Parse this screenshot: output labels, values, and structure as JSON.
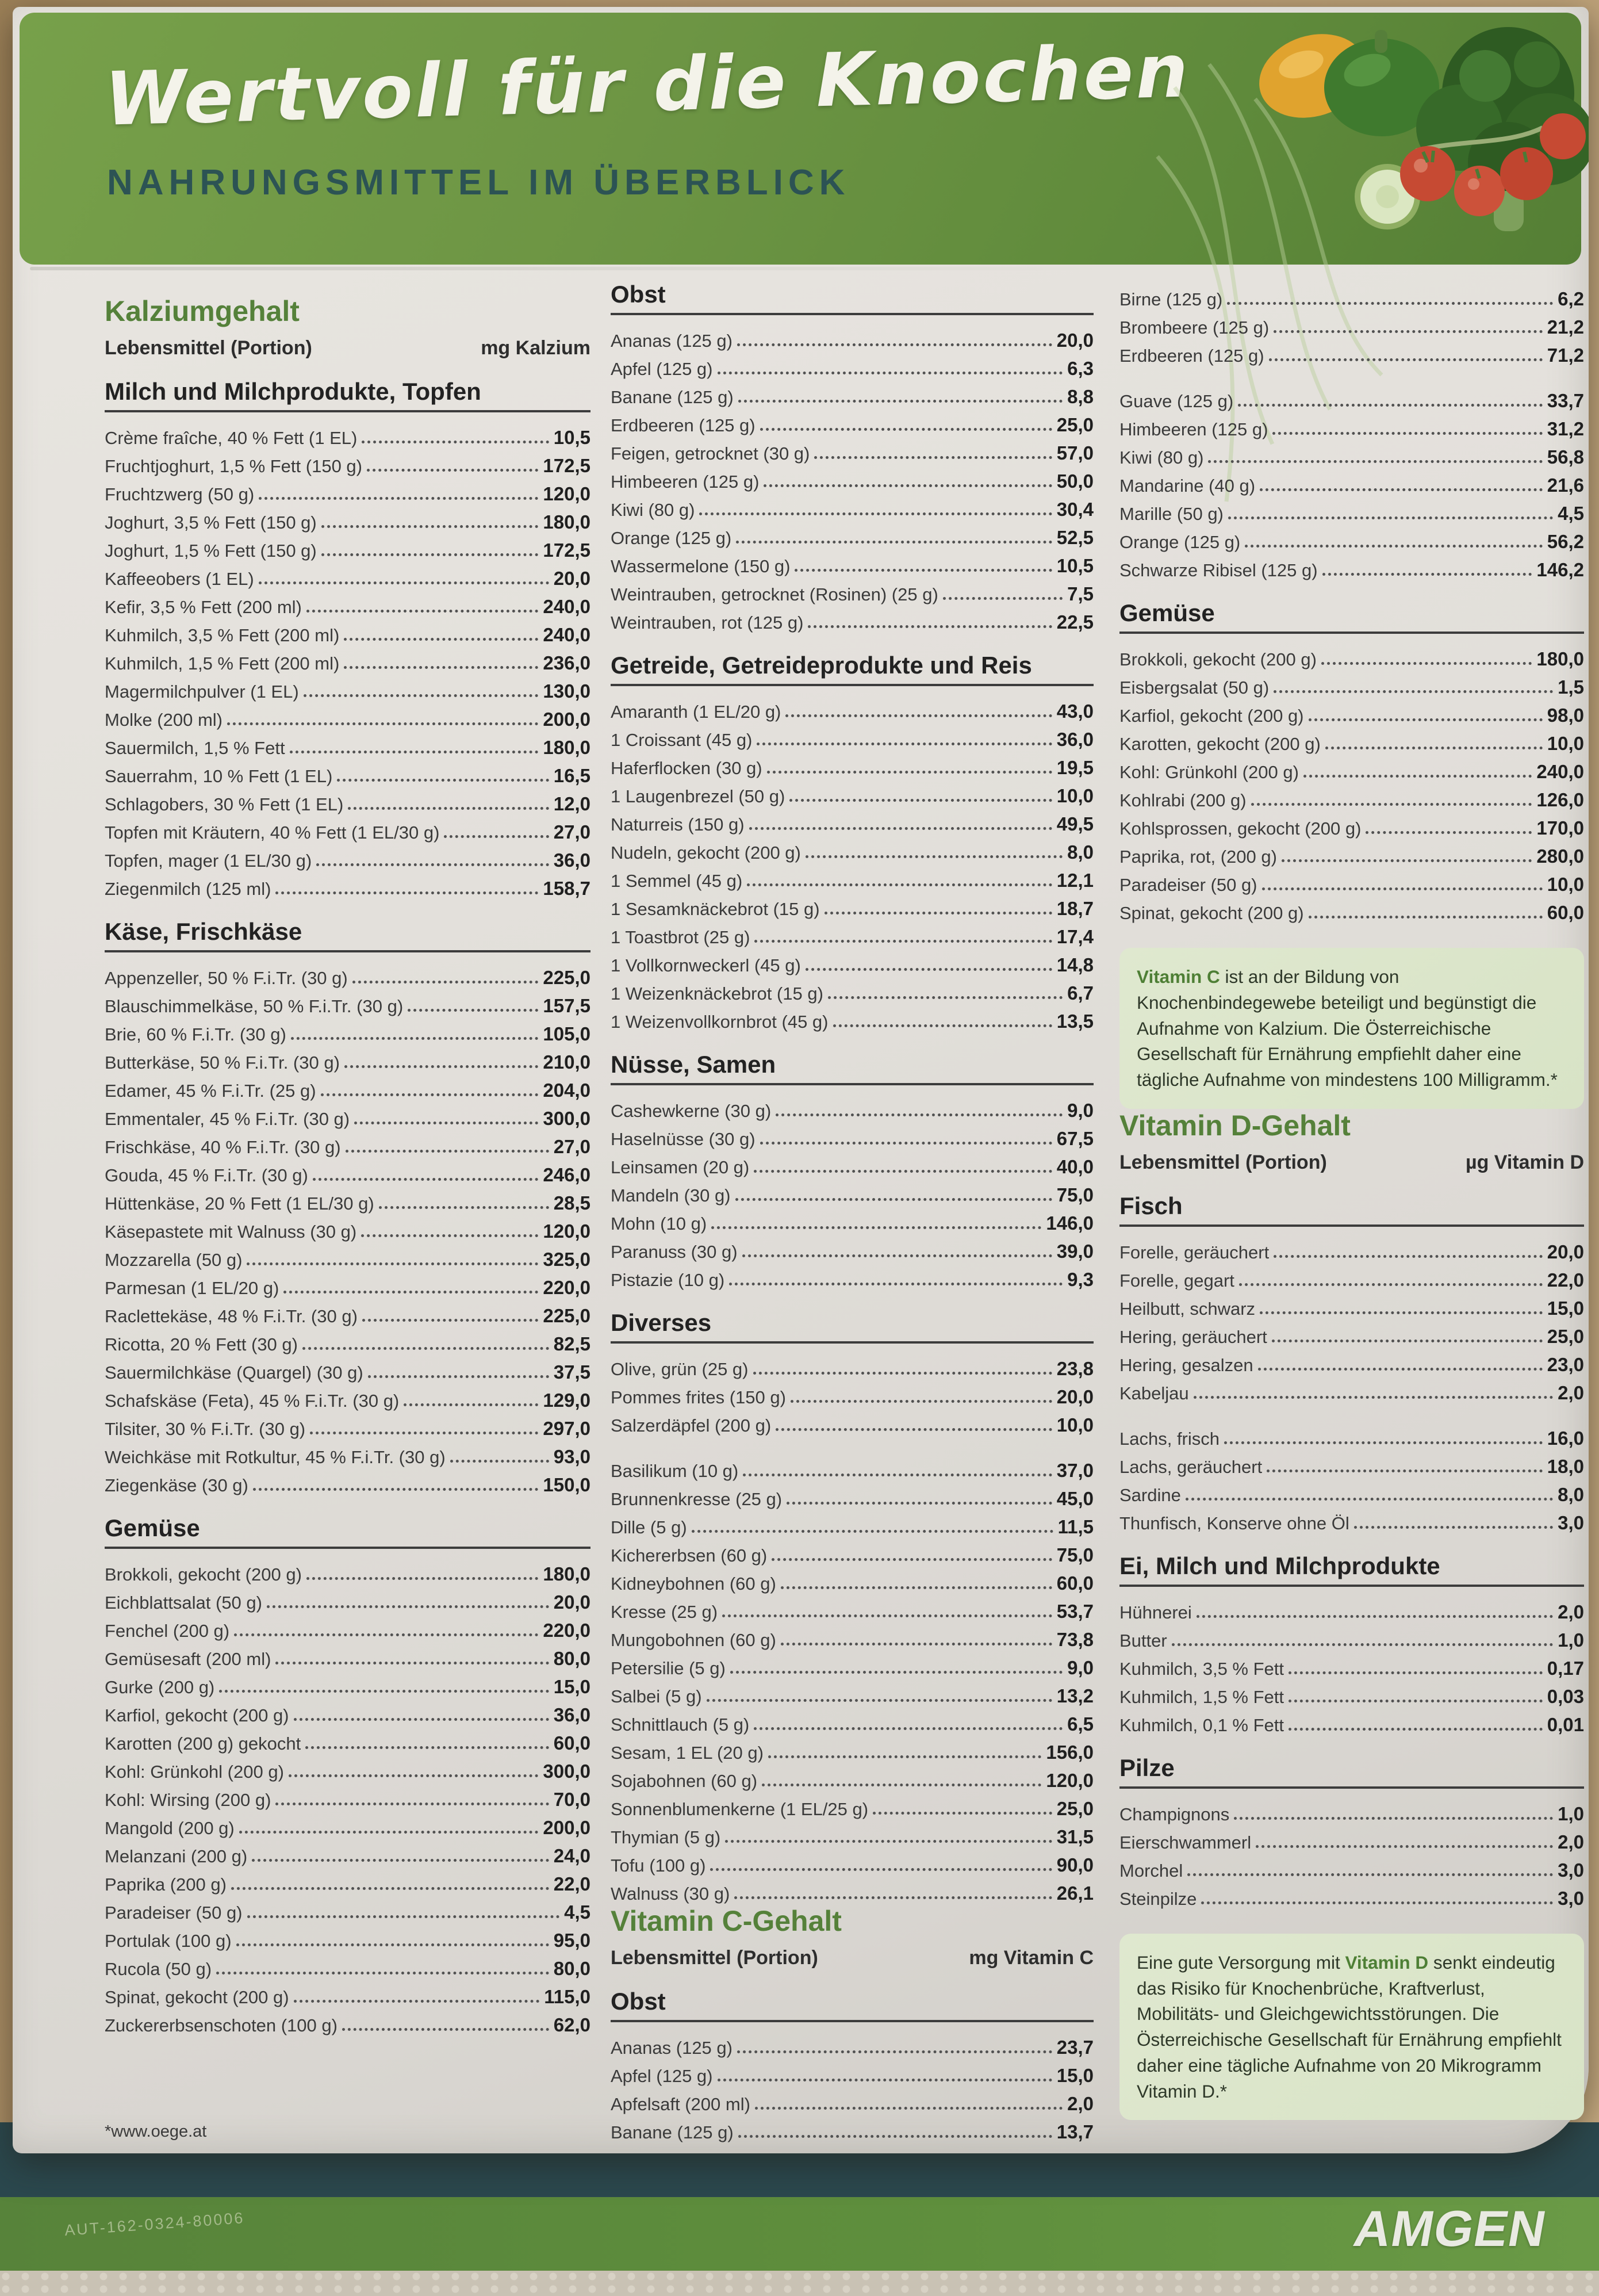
{
  "header": {
    "title": "Wertvoll für die Knochen",
    "subtitle": "NAHRUNGSMITTEL IM ÜBERBLICK"
  },
  "footer": {
    "code": "AUT-162-0324-80006",
    "brand": "AMGEN"
  },
  "colors": {
    "header_green": "#6d9544",
    "section_green": "#55813a",
    "infobox_bg": "#dce6ca",
    "footer_teal": "#2b484e",
    "footer_green": "#5f8f3d"
  },
  "columns": [
    {
      "blocks": [
        {
          "kind": "sectionTitle",
          "text": "Kalziumgehalt"
        },
        {
          "kind": "colHeads",
          "left": "Lebensmittel (Portion)",
          "right": "mg Kalzium"
        },
        {
          "kind": "group",
          "title": "Milch und Milchprodukte, Topfen",
          "rows": [
            [
              "Crème fraîche, 40 % Fett (1 EL)",
              "10,5"
            ],
            [
              "Fruchtjoghurt, 1,5 % Fett (150 g)",
              "172,5"
            ],
            [
              "Fruchtzwerg (50 g)",
              "120,0"
            ],
            [
              "Joghurt, 3,5 % Fett (150 g)",
              "180,0"
            ],
            [
              "Joghurt, 1,5 % Fett (150 g)",
              "172,5"
            ],
            [
              "Kaffeeobers (1 EL)",
              "20,0"
            ],
            [
              "Kefir, 3,5 % Fett (200 ml)",
              "240,0"
            ],
            [
              "Kuhmilch, 3,5 % Fett (200 ml)",
              "240,0"
            ],
            [
              "Kuhmilch, 1,5 % Fett (200 ml)",
              "236,0"
            ],
            [
              "Magermilchpulver (1 EL)",
              "130,0"
            ],
            [
              "Molke (200 ml)",
              "200,0"
            ],
            [
              "Sauermilch, 1,5 % Fett",
              "180,0"
            ],
            [
              "Sauerrahm, 10 % Fett (1 EL)",
              "16,5"
            ],
            [
              "Schlagobers, 30 % Fett (1 EL)",
              "12,0"
            ],
            [
              "Topfen mit Kräutern, 40 % Fett (1 EL/30 g)",
              "27,0"
            ],
            [
              "Topfen, mager (1 EL/30 g)",
              "36,0"
            ],
            [
              "Ziegenmilch (125 ml)",
              "158,7"
            ]
          ]
        },
        {
          "kind": "group",
          "title": "Käse, Frischkäse",
          "rows": [
            [
              "Appenzeller, 50 % F.i.Tr. (30 g)",
              "225,0"
            ],
            [
              "Blauschimmelkäse, 50 % F.i.Tr. (30 g)",
              "157,5"
            ],
            [
              "Brie, 60 % F.i.Tr. (30 g)",
              "105,0"
            ],
            [
              "Butterkäse, 50 % F.i.Tr. (30 g)",
              "210,0"
            ],
            [
              "Edamer, 45 % F.i.Tr. (25 g)",
              "204,0"
            ],
            [
              "Emmentaler, 45 % F.i.Tr. (30 g)",
              "300,0"
            ],
            [
              "Frischkäse, 40 % F.i.Tr. (30 g)",
              "27,0"
            ],
            [
              "Gouda, 45 % F.i.Tr. (30 g)",
              "246,0"
            ],
            [
              "Hüttenkäse, 20 % Fett (1 EL/30 g)",
              "28,5"
            ],
            [
              "Käsepastete mit Walnuss (30 g)",
              "120,0"
            ],
            [
              "Mozzarella (50 g)",
              "325,0"
            ],
            [
              "Parmesan (1 EL/20 g)",
              "220,0"
            ],
            [
              "Raclettekäse, 48 % F.i.Tr. (30 g)",
              "225,0"
            ],
            [
              "Ricotta, 20 % Fett (30 g)",
              "82,5"
            ],
            [
              "Sauermilchkäse (Quargel) (30 g)",
              "37,5"
            ],
            [
              "Schafskäse (Feta), 45 % F.i.Tr. (30 g)",
              "129,0"
            ],
            [
              "Tilsiter, 30 % F.i.Tr. (30 g)",
              "297,0"
            ],
            [
              "Weichkäse mit Rotkultur, 45 % F.i.Tr. (30 g)",
              "93,0"
            ],
            [
              "Ziegenkäse (30 g)",
              "150,0"
            ]
          ]
        },
        {
          "kind": "group",
          "title": "Gemüse",
          "rows": [
            [
              "Brokkoli, gekocht (200 g)",
              "180,0"
            ],
            [
              "Eichblattsalat (50 g)",
              "20,0"
            ],
            [
              "Fenchel (200 g)",
              "220,0"
            ],
            [
              "Gemüsesaft (200 ml)",
              "80,0"
            ],
            [
              "Gurke (200 g)",
              "15,0"
            ],
            [
              "Karfiol, gekocht (200 g)",
              "36,0"
            ],
            [
              "Karotten (200 g) gekocht",
              "60,0"
            ],
            [
              "Kohl: Grünkohl (200 g)",
              "300,0"
            ],
            [
              "Kohl: Wirsing (200 g)",
              "70,0"
            ],
            [
              "Mangold (200 g)",
              "200,0"
            ],
            [
              "Melanzani (200 g)",
              "24,0"
            ],
            [
              "Paprika (200 g)",
              "22,0"
            ],
            [
              "Paradeiser (50 g)",
              "4,5"
            ],
            [
              "Portulak (100 g)",
              "95,0"
            ],
            [
              "Rucola (50 g)",
              "80,0"
            ],
            [
              "Spinat, gekocht (200 g)",
              "115,0"
            ],
            [
              "Zuckererbsenschoten (100 g)",
              "62,0"
            ]
          ]
        },
        {
          "kind": "footnote",
          "text": "*www.oege.at"
        }
      ]
    },
    {
      "blocks": [
        {
          "kind": "group",
          "title": "Obst",
          "rows": [
            [
              "Ananas (125 g)",
              "20,0"
            ],
            [
              "Apfel (125 g)",
              "6,3"
            ],
            [
              "Banane (125 g)",
              "8,8"
            ],
            [
              "Erdbeeren (125 g)",
              "25,0"
            ],
            [
              "Feigen, getrocknet (30 g)",
              "57,0"
            ],
            [
              "Himbeeren (125 g)",
              "50,0"
            ],
            [
              "Kiwi (80 g)",
              "30,4"
            ],
            [
              "Orange (125 g)",
              "52,5"
            ],
            [
              "Wassermelone (150 g)",
              "10,5"
            ],
            [
              "Weintrauben, getrocknet (Rosinen) (25 g)",
              "7,5"
            ],
            [
              "Weintrauben, rot (125 g)",
              "22,5"
            ]
          ]
        },
        {
          "kind": "group",
          "title": "Getreide, Getreideprodukte und Reis",
          "rows": [
            [
              "Amaranth (1 EL/20 g)",
              "43,0"
            ],
            [
              "1 Croissant (45 g)",
              "36,0"
            ],
            [
              "Haferflocken (30 g)",
              "19,5"
            ],
            [
              "1 Laugenbrezel (50 g)",
              "10,0"
            ],
            [
              "Naturreis (150 g)",
              "49,5"
            ],
            [
              "Nudeln, gekocht (200 g)",
              "8,0"
            ],
            [
              "1 Semmel (45 g)",
              "12,1"
            ],
            [
              "1 Sesamknäckebrot (15 g)",
              "18,7"
            ],
            [
              "1 Toastbrot (25 g)",
              "17,4"
            ],
            [
              "1 Vollkornweckerl (45 g)",
              "14,8"
            ],
            [
              "1 Weizenknäckebrot (15 g)",
              "6,7"
            ],
            [
              "1 Weizenvollkornbrot (45 g)",
              "13,5"
            ]
          ]
        },
        {
          "kind": "group",
          "title": "Nüsse, Samen",
          "rows": [
            [
              "Cashewkerne (30 g)",
              "9,0"
            ],
            [
              "Haselnüsse (30 g)",
              "67,5"
            ],
            [
              "Leinsamen (20 g)",
              "40,0"
            ],
            [
              "Mandeln (30 g)",
              "75,0"
            ],
            [
              "Mohn (10 g)",
              "146,0"
            ],
            [
              "Paranuss (30 g)",
              "39,0"
            ],
            [
              "Pistazie (10 g)",
              "9,3"
            ]
          ]
        },
        {
          "kind": "group",
          "title": "Diverses",
          "rows": [
            [
              "Olive, grün (25 g)",
              "23,8"
            ],
            [
              "Pommes frites (150 g)",
              "20,0"
            ],
            [
              "Salzerdäpfel (200 g)",
              "10,0"
            ],
            null,
            [
              "Basilikum (10 g)",
              "37,0"
            ],
            [
              "Brunnenkresse (25 g)",
              "45,0"
            ],
            [
              "Dille (5 g)",
              "11,5"
            ],
            [
              "Kichererbsen (60 g)",
              "75,0"
            ],
            [
              "Kidneybohnen (60 g)",
              "60,0"
            ],
            [
              "Kresse (25 g)",
              "53,7"
            ],
            [
              "Mungobohnen (60 g)",
              "73,8"
            ],
            [
              "Petersilie (5 g)",
              "9,0"
            ],
            [
              "Salbei (5 g)",
              "13,2"
            ],
            [
              "Schnittlauch (5 g)",
              "6,5"
            ],
            [
              "Sesam, 1 EL (20 g)",
              "156,0"
            ],
            [
              "Sojabohnen (60 g)",
              "120,0"
            ],
            [
              "Sonnenblumenkerne (1 EL/25 g)",
              "25,0"
            ],
            [
              "Thymian (5 g)",
              "31,5"
            ],
            [
              "Tofu (100 g)",
              "90,0"
            ],
            [
              "Walnuss (30 g)",
              "26,1"
            ]
          ]
        },
        {
          "kind": "sectionTitle",
          "text": "Vitamin C-Gehalt"
        },
        {
          "kind": "colHeads",
          "left": "Lebensmittel (Portion)",
          "right": "mg Vitamin C"
        },
        {
          "kind": "group",
          "title": "Obst",
          "rows": [
            [
              "Ananas (125 g)",
              "23,7"
            ],
            [
              "Apfel (125 g)",
              "15,0"
            ],
            [
              "Apfelsaft (200 ml)",
              "2,0"
            ],
            [
              "Banane (125 g)",
              "13,7"
            ]
          ]
        }
      ]
    },
    {
      "blocks": [
        {
          "kind": "group",
          "title": null,
          "rows": [
            [
              "Birne (125 g)",
              "6,2"
            ],
            [
              "Brombeere (125 g)",
              "21,2"
            ],
            [
              "Erdbeeren (125 g)",
              "71,2"
            ],
            null,
            [
              "Guave (125 g)",
              "33,7"
            ],
            [
              "Himbeeren (125 g)",
              "31,2"
            ],
            [
              "Kiwi (80 g)",
              "56,8"
            ],
            [
              "Mandarine (40 g)",
              "21,6"
            ],
            [
              "Marille (50 g)",
              "4,5"
            ],
            [
              "Orange (125 g)",
              "56,2"
            ],
            [
              "Schwarze Ribisel (125 g)",
              "146,2"
            ]
          ]
        },
        {
          "kind": "group",
          "title": "Gemüse",
          "rows": [
            [
              "Brokkoli, gekocht (200 g)",
              "180,0"
            ],
            [
              "Eisbergsalat (50 g)",
              "1,5"
            ],
            [
              "Karfiol, gekocht (200 g)",
              "98,0"
            ],
            [
              "Karotten, gekocht (200 g)",
              "10,0"
            ],
            [
              "Kohl: Grünkohl (200 g)",
              "240,0"
            ],
            [
              "Kohlrabi (200 g)",
              "126,0"
            ],
            [
              "Kohlsprossen, gekocht (200 g)",
              "170,0"
            ],
            [
              "Paprika, rot, (200 g)",
              "280,0"
            ],
            [
              "Paradeiser (50 g)",
              "10,0"
            ],
            [
              "Spinat, gekocht (200 g)",
              "60,0"
            ]
          ]
        },
        {
          "kind": "infobox",
          "segments": [
            {
              "text": "Vitamin C",
              "bold": true
            },
            {
              "text": " ist an der Bildung von Knochenbindegewebe beteiligt und begünstigt die Aufnahme von Kalzium. Die Österreichische Gesellschaft für Ernährung empfiehlt daher eine tägliche Aufnahme von mindestens 100 Milligramm.*",
              "bold": false
            }
          ]
        },
        {
          "kind": "sectionTitle",
          "text": "Vitamin D-Gehalt"
        },
        {
          "kind": "colHeads",
          "left": "Lebensmittel (Portion)",
          "right": "µg Vitamin D"
        },
        {
          "kind": "group",
          "title": "Fisch",
          "rows": [
            [
              "Forelle, geräuchert",
              "20,0"
            ],
            [
              "Forelle, gegart",
              "22,0"
            ],
            [
              "Heilbutt, schwarz",
              "15,0"
            ],
            [
              "Hering, geräuchert",
              "25,0"
            ],
            [
              "Hering, gesalzen",
              "23,0"
            ],
            [
              "Kabeljau",
              "2,0"
            ],
            null,
            [
              "Lachs, frisch",
              "16,0"
            ],
            [
              "Lachs, geräuchert",
              "18,0"
            ],
            [
              "Sardine",
              "8,0"
            ],
            [
              "Thunfisch, Konserve ohne Öl",
              "3,0"
            ]
          ]
        },
        {
          "kind": "group",
          "title": "Ei, Milch und Milchprodukte",
          "rows": [
            [
              "Hühnerei",
              "2,0"
            ],
            [
              "Butter",
              "1,0"
            ],
            [
              "Kuhmilch, 3,5 % Fett",
              "0,17"
            ],
            [
              "Kuhmilch, 1,5 % Fett",
              "0,03"
            ],
            [
              "Kuhmilch, 0,1 % Fett",
              "0,01"
            ]
          ]
        },
        {
          "kind": "group",
          "title": "Pilze",
          "rows": [
            [
              "Champignons",
              "1,0"
            ],
            [
              "Eierschwammerl",
              "2,0"
            ],
            [
              "Morchel",
              "3,0"
            ],
            [
              "Steinpilze",
              "3,0"
            ]
          ]
        },
        {
          "kind": "infobox",
          "segments": [
            {
              "text": "Eine gute Versorgung mit ",
              "bold": false
            },
            {
              "text": "Vitamin D",
              "bold": true
            },
            {
              "text": " senkt eindeutig das Risiko für Knochenbrüche, Kraftverlust, Mobilitäts- und Gleichgewichtsstörungen. Die Österreichische Gesellschaft für Ernährung empfiehlt daher eine tägliche Aufnahme von 20 Mikrogramm Vitamin D.*",
              "bold": false
            }
          ]
        }
      ]
    }
  ]
}
